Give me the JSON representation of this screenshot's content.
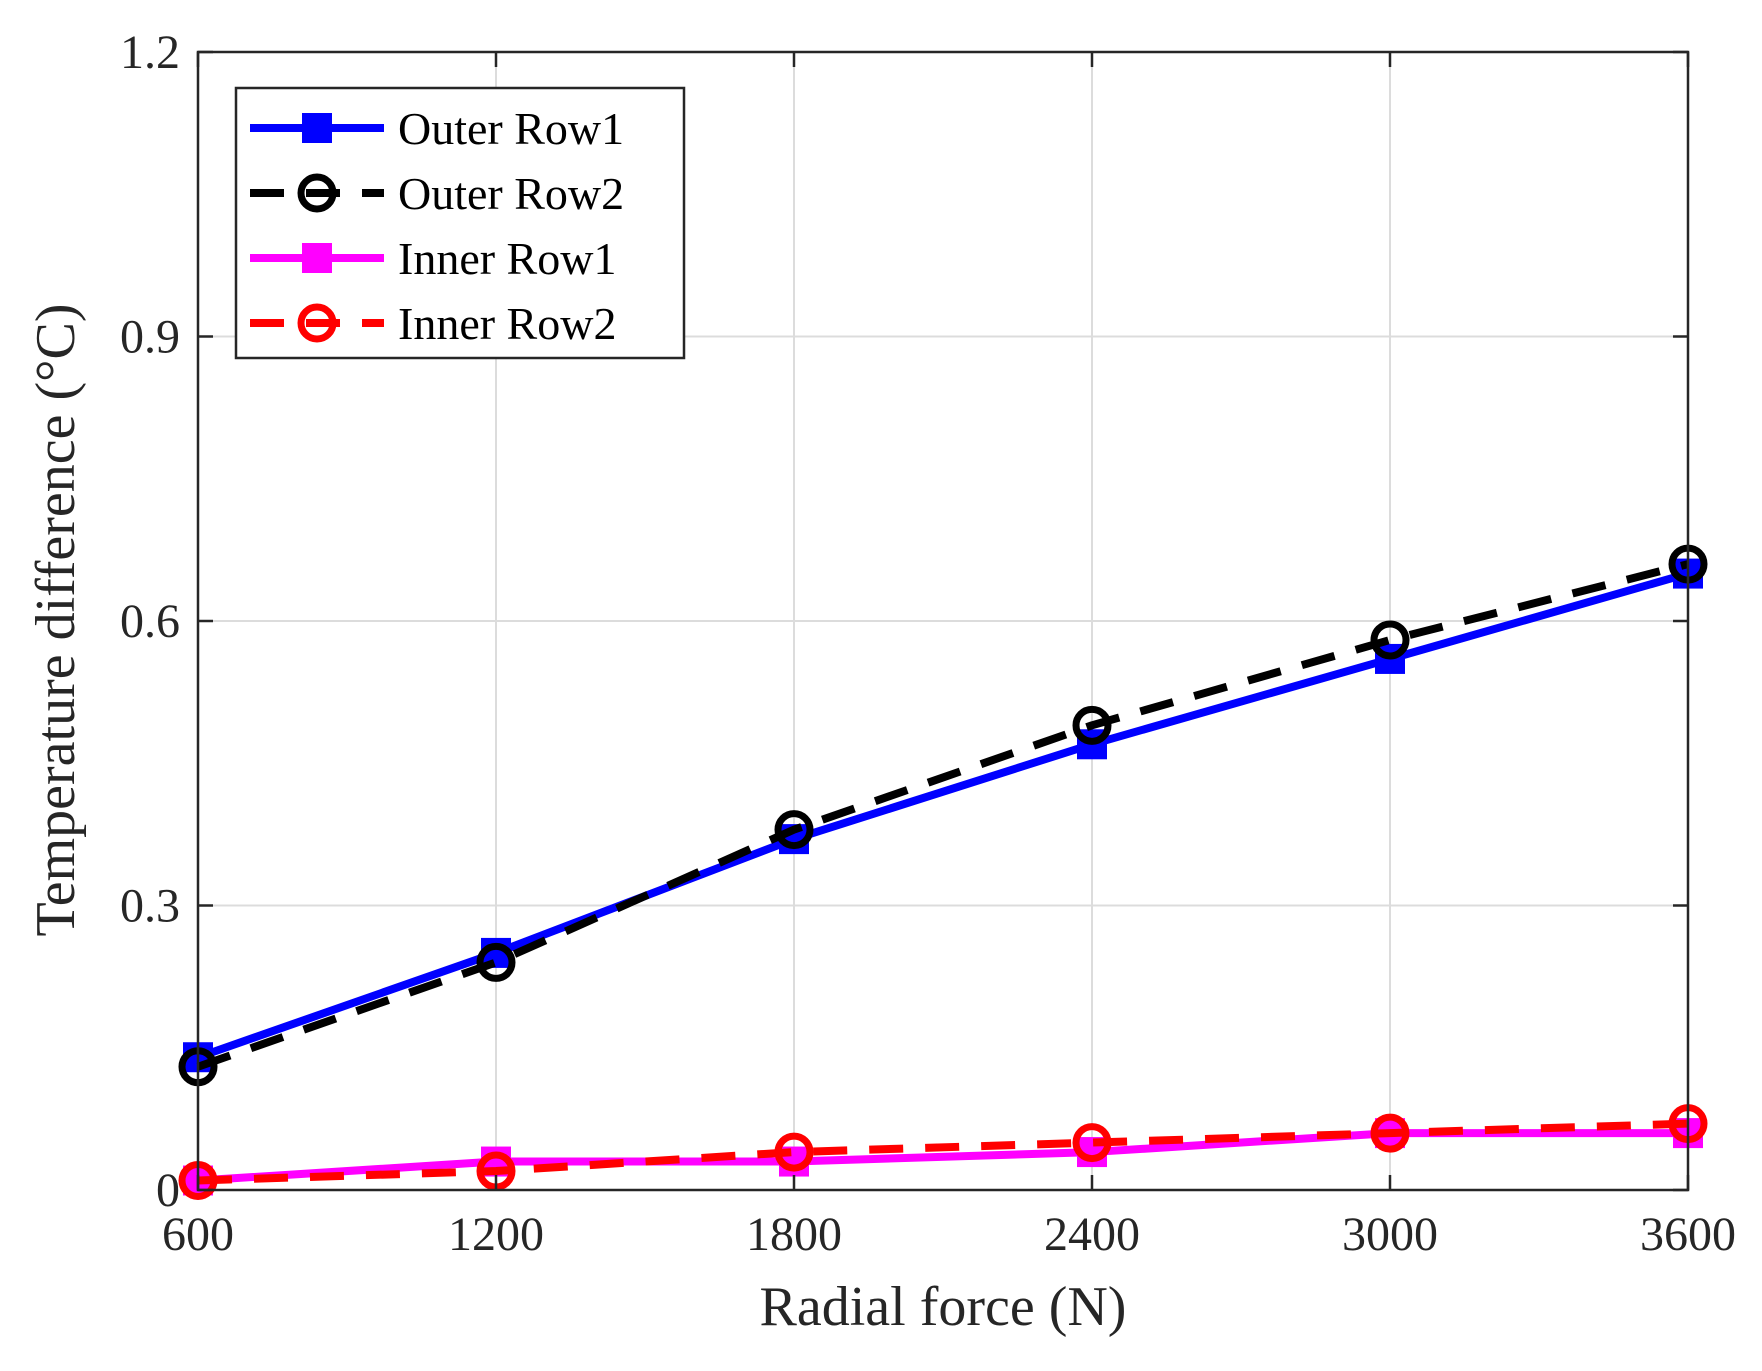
{
  "chart_data": {
    "type": "line",
    "title": "",
    "xlabel": "Radial force (N)",
    "ylabel": "Temperature difference (°C)",
    "x": [
      600,
      1200,
      1800,
      2400,
      3000,
      3600
    ],
    "xlim": [
      600,
      3600
    ],
    "ylim": [
      0,
      1.2
    ],
    "xticks": [
      600,
      1200,
      1800,
      2400,
      3000,
      3600
    ],
    "xtick_labels": [
      "600",
      "1200",
      "1800",
      "2400",
      "3000",
      "3600"
    ],
    "yticks": [
      0,
      0.3,
      0.6,
      0.9,
      1.2
    ],
    "ytick_labels": [
      "0",
      "0.3",
      "0.6",
      "0.9",
      "1.2"
    ],
    "grid": true,
    "legend_position": "top-left",
    "series": [
      {
        "name": "Outer Row1",
        "values": [
          0.14,
          0.25,
          0.37,
          0.47,
          0.56,
          0.65
        ],
        "color": "#0000ff",
        "dash": "solid",
        "marker": "square"
      },
      {
        "name": "Outer Row2",
        "values": [
          0.13,
          0.24,
          0.38,
          0.49,
          0.58,
          0.66
        ],
        "color": "#000000",
        "dash": "dashed",
        "marker": "circle"
      },
      {
        "name": "Inner Row1",
        "values": [
          0.01,
          0.03,
          0.03,
          0.04,
          0.06,
          0.06
        ],
        "color": "#ff00ff",
        "dash": "solid",
        "marker": "square"
      },
      {
        "name": "Inner Row2",
        "values": [
          0.01,
          0.02,
          0.04,
          0.05,
          0.06,
          0.07
        ],
        "color": "#ff0000",
        "dash": "dashed",
        "marker": "circle"
      }
    ]
  }
}
